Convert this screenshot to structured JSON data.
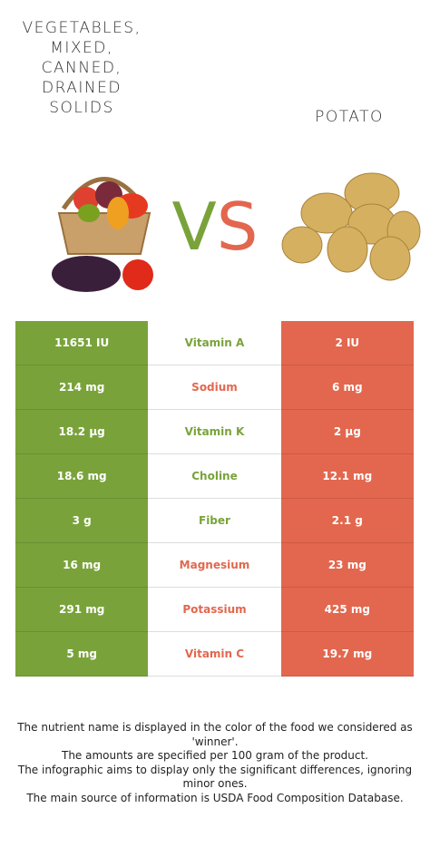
{
  "header": {
    "left_title": [
      "VEGETABLES,",
      "MIXED,",
      "CANNED,",
      "DRAINED",
      "SOLIDS"
    ],
    "right_title": [
      "POTATO"
    ],
    "vs": [
      "V",
      "S"
    ]
  },
  "colors": {
    "left": "#79a33a",
    "right": "#e2674e"
  },
  "table": {
    "rows": [
      {
        "left": "11651 IU",
        "nutrient": "Vitamin A",
        "right": "2 IU",
        "winner": "left"
      },
      {
        "left": "214 mg",
        "nutrient": "Sodium",
        "right": "6 mg",
        "winner": "right"
      },
      {
        "left": "18.2 µg",
        "nutrient": "Vitamin K",
        "right": "2 µg",
        "winner": "left"
      },
      {
        "left": "18.6 mg",
        "nutrient": "Choline",
        "right": "12.1 mg",
        "winner": "left"
      },
      {
        "left": "3 g",
        "nutrient": "Fiber",
        "right": "2.1 g",
        "winner": "left"
      },
      {
        "left": "16 mg",
        "nutrient": "Magnesium",
        "right": "23 mg",
        "winner": "right"
      },
      {
        "left": "291 mg",
        "nutrient": "Potassium",
        "right": "425 mg",
        "winner": "right"
      },
      {
        "left": "5 mg",
        "nutrient": "Vitamin C",
        "right": "19.7 mg",
        "winner": "right"
      }
    ]
  },
  "footer": [
    "The nutrient name is displayed in the color of the food we considered as 'winner'.",
    "The amounts are specified per 100 gram of the product.",
    "The infographic aims to display only the significant differences, ignoring minor ones.",
    "The main source of information is USDA Food Composition Database."
  ]
}
